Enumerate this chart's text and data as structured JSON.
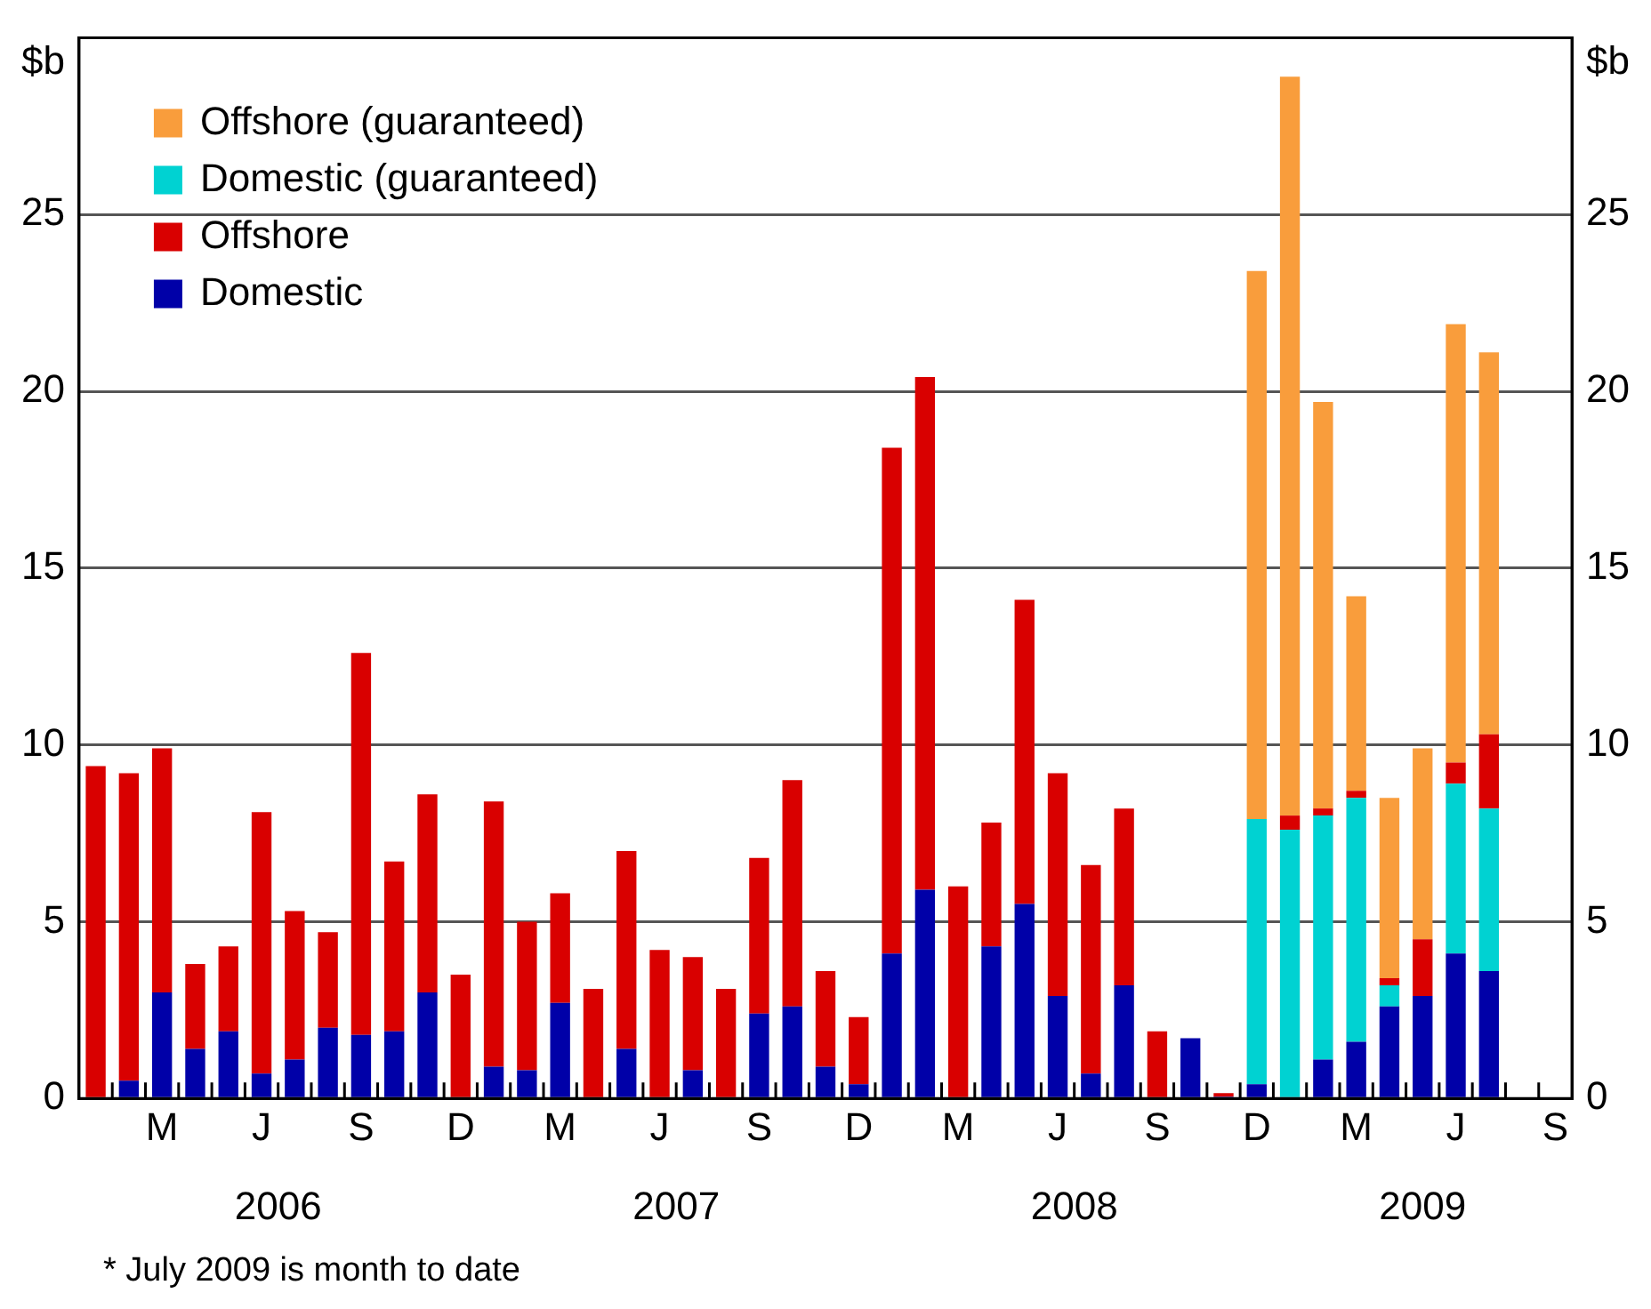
{
  "chart_data": {
    "type": "bar",
    "stacked": true,
    "categories": [
      null,
      null,
      "M",
      null,
      null,
      "J",
      null,
      null,
      "S",
      null,
      null,
      "D",
      null,
      null,
      "M",
      null,
      null,
      "J",
      null,
      null,
      "S",
      null,
      null,
      "D",
      null,
      null,
      "M",
      null,
      null,
      "J",
      null,
      null,
      "S",
      null,
      null,
      "D",
      null,
      null,
      "M",
      null,
      null,
      "J",
      null,
      null,
      "S"
    ],
    "series": [
      {
        "name": "Domestic",
        "color": "#0000a8",
        "values": [
          0,
          0.5,
          3.0,
          1.4,
          1.9,
          0.7,
          1.1,
          2.0,
          1.8,
          1.9,
          3.0,
          0,
          0.9,
          0.8,
          2.7,
          0,
          1.4,
          0,
          0.8,
          0,
          2.4,
          2.6,
          0.9,
          0.4,
          4.1,
          5.9,
          0,
          4.3,
          5.5,
          2.9,
          0.7,
          3.2,
          0,
          1.7,
          0.05,
          0.4,
          0,
          1.1,
          1.6,
          2.6,
          2.9,
          4.1,
          3.6,
          null,
          null
        ]
      },
      {
        "name": "Domestic (guaranteed)",
        "color": "#00d2d2",
        "values": [
          null,
          null,
          null,
          null,
          null,
          null,
          null,
          null,
          null,
          null,
          null,
          null,
          null,
          null,
          null,
          null,
          null,
          null,
          null,
          null,
          null,
          null,
          null,
          null,
          null,
          null,
          null,
          null,
          null,
          null,
          null,
          null,
          null,
          null,
          null,
          7.5,
          7.6,
          6.9,
          6.9,
          0.6,
          0,
          4.8,
          4.6,
          null,
          null
        ]
      },
      {
        "name": "Offshore",
        "color": "#d90000",
        "values": [
          9.4,
          8.7,
          6.9,
          2.4,
          2.4,
          7.4,
          4.2,
          2.7,
          10.8,
          4.8,
          5.6,
          3.5,
          7.5,
          4.2,
          3.1,
          3.1,
          5.6,
          4.2,
          3.2,
          3.1,
          4.4,
          6.4,
          2.7,
          1.9,
          14.3,
          14.5,
          6.0,
          3.5,
          8.6,
          6.3,
          5.9,
          5.0,
          1.9,
          0,
          0.1,
          0,
          0.4,
          0.2,
          0.2,
          0.2,
          1.6,
          0.6,
          2.1,
          null,
          null
        ]
      },
      {
        "name": "Offshore (guaranteed)",
        "color": "#f99d3c",
        "values": [
          null,
          null,
          null,
          null,
          null,
          null,
          null,
          null,
          null,
          null,
          null,
          null,
          null,
          null,
          null,
          null,
          null,
          null,
          null,
          null,
          null,
          null,
          null,
          null,
          null,
          null,
          null,
          null,
          null,
          null,
          null,
          null,
          null,
          null,
          null,
          15.5,
          20.9,
          11.5,
          5.5,
          5.1,
          5.4,
          12.4,
          10.8,
          null,
          null
        ]
      }
    ],
    "ylabel": "$b",
    "y2label": "$b",
    "ylim": [
      0,
      30
    ],
    "yticks": [
      0,
      5,
      10,
      15,
      20,
      25
    ],
    "y2lim": [
      0,
      30
    ],
    "y2ticks": [
      0,
      5,
      10,
      15,
      20,
      25
    ],
    "grid": "y",
    "legend": "top left",
    "annotations": [
      "2006",
      "2007",
      "2008",
      "2009",
      "*   July 2009 is month to date"
    ]
  }
}
